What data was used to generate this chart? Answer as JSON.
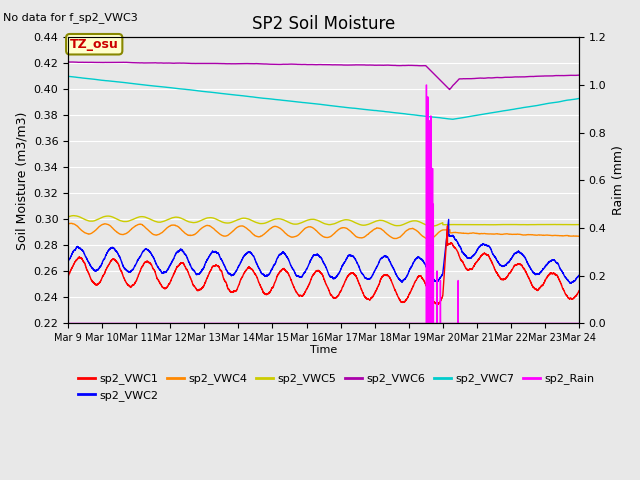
{
  "title": "SP2 Soil Moisture",
  "no_data_text": "No data for f_sp2_VWC3",
  "tz_label": "TZ_osu",
  "xlabel": "Time",
  "ylabel_left": "Soil Moisture (m3/m3)",
  "ylabel_right": "Raim (mm)",
  "ylim_left": [
    0.22,
    0.44
  ],
  "ylim_right": [
    0.0,
    1.2
  ],
  "xtick_labels": [
    "Mar 9",
    "Mar 10",
    "Mar 11",
    "Mar 12",
    "Mar 13",
    "Mar 14",
    "Mar 15",
    "Mar 16",
    "Mar 17",
    "Mar 18",
    "Mar 19",
    "Mar 20",
    "Mar 21",
    "Mar 22",
    "Mar 23",
    "Mar 24"
  ],
  "colors": {
    "vwc1": "#ff0000",
    "vwc2": "#0000ff",
    "vwc4": "#ff8800",
    "vwc5": "#cccc00",
    "vwc6": "#aa00aa",
    "vwc7": "#00cccc",
    "rain": "#ff00ff"
  },
  "background_color": "#e8e8e8",
  "title_fontsize": 12,
  "label_fontsize": 9
}
